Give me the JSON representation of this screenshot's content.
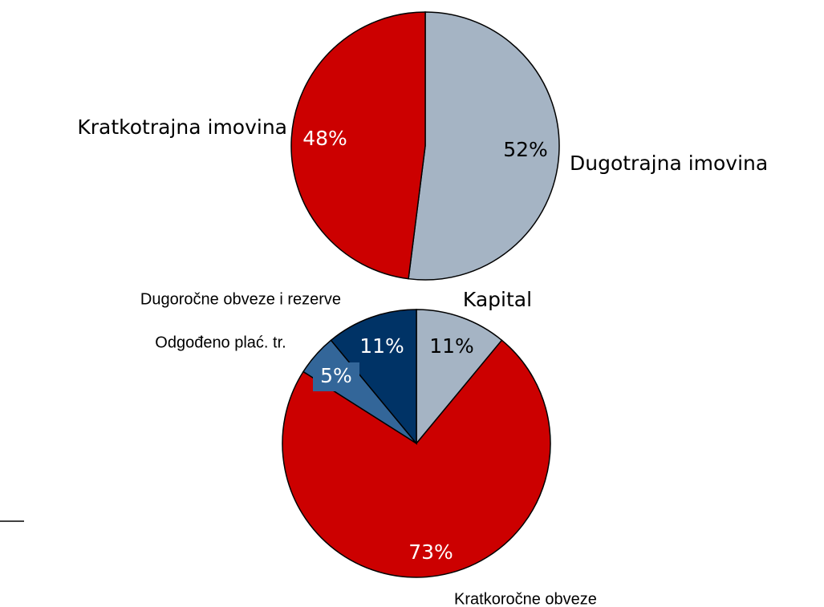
{
  "chart_data": [
    {
      "type": "pie",
      "categories": [
        "Dugotrajna imovina",
        "Kratkotrajna imovina"
      ],
      "values": [
        52,
        48
      ],
      "value_labels": [
        "52%",
        "48%"
      ],
      "colors": [
        "#a5b4c4",
        "#cc0000"
      ]
    },
    {
      "type": "pie",
      "categories": [
        "Kapital",
        "Kratkoročne obveze",
        "Odgođeno plać. tr.",
        "Dugoročne obveze i rezerve"
      ],
      "values": [
        11,
        73,
        5,
        11
      ],
      "value_labels": [
        "11%",
        "73%",
        "5%",
        "11%"
      ],
      "colors": [
        "#a5b4c4",
        "#cc0000",
        "#336699",
        "#003366"
      ]
    }
  ]
}
